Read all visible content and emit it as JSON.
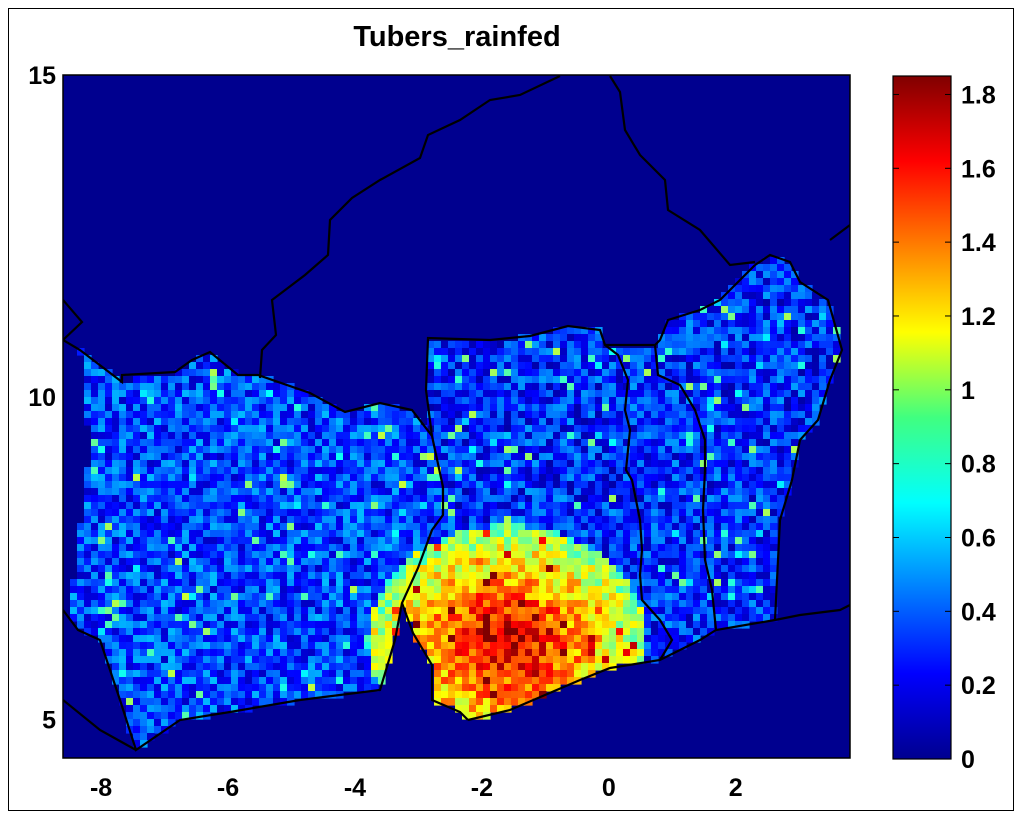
{
  "chart_data": [
    {
      "type": "heatmap",
      "title": "Tubers_rainfed",
      "xlabel": "",
      "ylabel": "",
      "xlim": [
        -8.6,
        3.8
      ],
      "ylim": [
        4.4,
        15
      ],
      "x_ticks": [
        "-8",
        "-6",
        "-4",
        "-2",
        "0",
        "2"
      ],
      "y_ticks": [
        "5",
        "10",
        "15"
      ],
      "background_color": "#00008f",
      "border_color": "#000000",
      "colormap": "jet",
      "grid": false,
      "hotspot": {
        "center": [
          -1.6,
          6.2
        ],
        "peak_value": 1.5
      },
      "regions": [
        {
          "name_hint": "west",
          "approx_mean": 0.35
        },
        {
          "name_hint": "center-north",
          "approx_mean": 0.3
        },
        {
          "name_hint": "east-strip",
          "approx_mean": 0.3
        },
        {
          "name_hint": "south-center",
          "approx_mean": 1.3
        }
      ]
    },
    {
      "type": "colorbar",
      "range": [
        0,
        1.85
      ],
      "ticks": [
        "0",
        "0.2",
        "0.4",
        "0.6",
        "0.8",
        "1",
        "1.2",
        "1.4",
        "1.6",
        "1.8"
      ],
      "colormap": "jet"
    }
  ]
}
